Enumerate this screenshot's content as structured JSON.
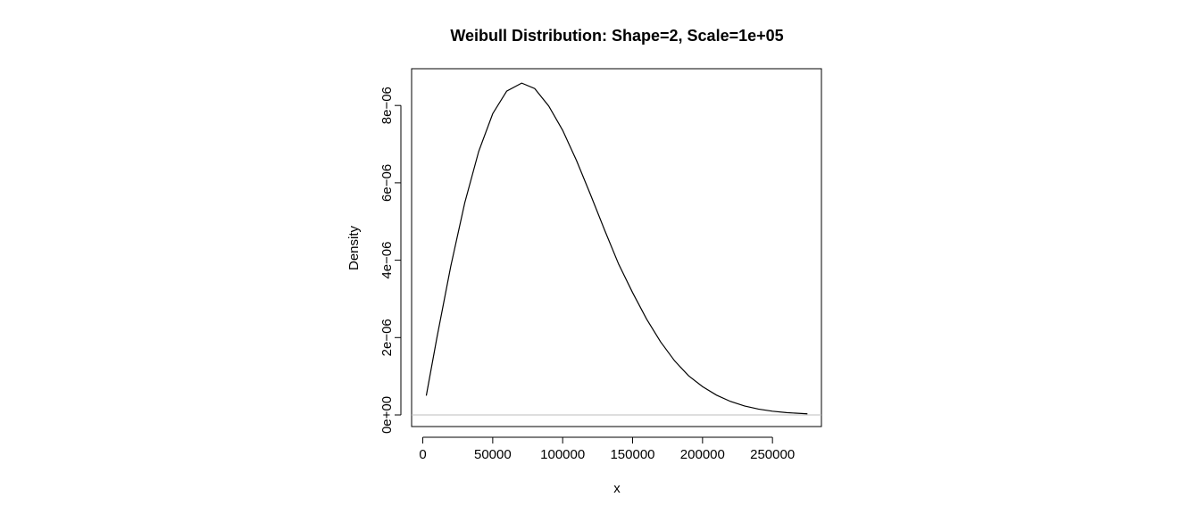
{
  "chart_data": {
    "type": "line",
    "title": "Weibull Distribution:  Shape=2, Scale=1e+05",
    "xlabel": "x",
    "ylabel": "Density",
    "xlim": [
      -8000,
      285000
    ],
    "ylim": [
      -3e-07,
      8.95e-06
    ],
    "x_ticks": [
      {
        "value": 0,
        "label": "0"
      },
      {
        "value": 50000,
        "label": "50000"
      },
      {
        "value": 100000,
        "label": "100000"
      },
      {
        "value": 150000,
        "label": "150000"
      },
      {
        "value": 200000,
        "label": "200000"
      },
      {
        "value": 250000,
        "label": "250000"
      }
    ],
    "y_ticks": [
      {
        "value": 0,
        "label": "0e+00"
      },
      {
        "value": 2e-06,
        "label": "2e−06"
      },
      {
        "value": 4e-06,
        "label": "4e−06"
      },
      {
        "value": 6e-06,
        "label": "6e−06"
      },
      {
        "value": 8e-06,
        "label": "8e−06"
      }
    ],
    "reference_line": {
      "y": 0,
      "color": "#bebebe"
    },
    "grid": false,
    "series": [
      {
        "color": "#000000",
        "x": [
          2500,
          10000,
          20000,
          30000,
          40000,
          50000,
          60000,
          70711,
          80000,
          90000,
          100000,
          110000,
          120000,
          130000,
          140000,
          150000,
          160000,
          170000,
          180000,
          190000,
          200000,
          210000,
          220000,
          230000,
          240000,
          250000,
          260000,
          275000
        ],
        "y": [
          4.997e-07,
          1.98e-06,
          3.843e-06,
          5.484e-06,
          6.816e-06,
          7.788e-06,
          8.372e-06,
          8.578e-06,
          8.437e-06,
          7.988e-06,
          7.358e-06,
          6.568e-06,
          5.686e-06,
          4.778e-06,
          3.9e-06,
          3.162e-06,
          2.479e-06,
          1.89e-06,
          1.4e-06,
          1.013e-06,
          7.33e-07,
          5.12e-07,
          3.49e-07,
          2.32e-07,
          1.51e-07,
          9.65e-08,
          6.04e-08,
          2.88e-08
        ]
      }
    ]
  }
}
